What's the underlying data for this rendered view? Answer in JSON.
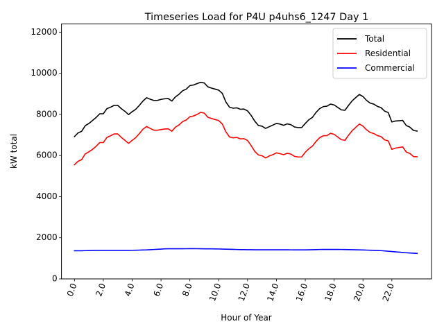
{
  "chart_data": {
    "type": "line",
    "title": "Timeseries Load for P4U p4uhs6_1247  Day 1",
    "xlabel": "Hour of Year",
    "ylabel": "kW total",
    "xlim": [
      -0.9,
      24.75
    ],
    "ylim": [
      0,
      12400
    ],
    "x_ticks": [
      0,
      2,
      4,
      6,
      8,
      10,
      12,
      14,
      16,
      18,
      20,
      22
    ],
    "x_tick_labels": [
      "0.0",
      "2.0",
      "4.0",
      "6.0",
      "8.0",
      "10.0",
      "12.0",
      "14.0",
      "16.0",
      "18.0",
      "20.0",
      "22.0"
    ],
    "y_ticks": [
      0,
      2000,
      4000,
      6000,
      8000,
      10000,
      12000
    ],
    "y_tick_labels": [
      "0",
      "2000",
      "4000",
      "6000",
      "8000",
      "10000",
      "12000"
    ],
    "grid": false,
    "legend_position": "top-right",
    "x": [
      0,
      0.25,
      0.5,
      0.75,
      1,
      1.25,
      1.5,
      1.75,
      2,
      2.25,
      2.5,
      2.75,
      3,
      3.25,
      3.5,
      3.75,
      4,
      4.25,
      4.5,
      4.75,
      5,
      5.25,
      5.5,
      5.75,
      6,
      6.25,
      6.5,
      6.75,
      7,
      7.25,
      7.5,
      7.75,
      8,
      8.25,
      8.5,
      8.75,
      9,
      9.25,
      9.5,
      9.75,
      10,
      10.25,
      10.5,
      10.75,
      11,
      11.25,
      11.5,
      11.75,
      12,
      12.25,
      12.5,
      12.75,
      13,
      13.25,
      13.5,
      13.75,
      14,
      14.25,
      14.5,
      14.75,
      15,
      15.25,
      15.5,
      15.75,
      16,
      16.25,
      16.5,
      16.75,
      17,
      17.25,
      17.5,
      17.75,
      18,
      18.25,
      18.5,
      18.75,
      19,
      19.25,
      19.5,
      19.75,
      20,
      20.25,
      20.5,
      20.75,
      21,
      21.25,
      21.5,
      21.75,
      22,
      22.25,
      22.5,
      22.75,
      23,
      23.25,
      23.5,
      23.75
    ],
    "series": [
      {
        "name": "Total",
        "color": "#000000",
        "values": [
          6920,
          7100,
          7180,
          7450,
          7560,
          7700,
          7850,
          8030,
          8030,
          8280,
          8350,
          8440,
          8440,
          8280,
          8150,
          7990,
          8130,
          8250,
          8440,
          8650,
          8810,
          8740,
          8680,
          8680,
          8730,
          8760,
          8770,
          8650,
          8850,
          8980,
          9150,
          9230,
          9400,
          9430,
          9500,
          9560,
          9530,
          9340,
          9280,
          9230,
          9180,
          9020,
          8600,
          8350,
          8300,
          8320,
          8250,
          8260,
          8170,
          7950,
          7670,
          7460,
          7430,
          7320,
          7400,
          7480,
          7560,
          7530,
          7470,
          7540,
          7500,
          7390,
          7360,
          7360,
          7560,
          7740,
          7860,
          8100,
          8280,
          8380,
          8400,
          8500,
          8460,
          8340,
          8220,
          8200,
          8440,
          8660,
          8820,
          8970,
          8870,
          8680,
          8550,
          8500,
          8390,
          8330,
          8160,
          8090,
          7630,
          7680,
          7690,
          7710,
          7460,
          7380,
          7220,
          7190
        ]
      },
      {
        "name": "Residential",
        "color": "#ff0000",
        "values": [
          5550,
          5720,
          5800,
          6080,
          6180,
          6300,
          6450,
          6630,
          6630,
          6880,
          6960,
          7050,
          7050,
          6880,
          6740,
          6590,
          6740,
          6870,
          7070,
          7280,
          7410,
          7320,
          7230,
          7230,
          7260,
          7290,
          7300,
          7180,
          7380,
          7490,
          7650,
          7730,
          7890,
          7920,
          8000,
          8100,
          8060,
          7860,
          7800,
          7750,
          7700,
          7530,
          7150,
          6900,
          6860,
          6880,
          6810,
          6820,
          6730,
          6480,
          6200,
          6030,
          5990,
          5880,
          5980,
          6040,
          6130,
          6090,
          6040,
          6110,
          6070,
          5960,
          5930,
          5930,
          6160,
          6330,
          6460,
          6690,
          6870,
          6960,
          6970,
          7080,
          7030,
          6900,
          6770,
          6740,
          6990,
          7210,
          7370,
          7530,
          7430,
          7250,
          7120,
          7070,
          6970,
          6920,
          6760,
          6710,
          6300,
          6360,
          6390,
          6420,
          6170,
          6100,
          5950,
          5940
        ]
      },
      {
        "name": "Commercial",
        "color": "#0000ff",
        "values": [
          1370,
          1370,
          1370,
          1375,
          1380,
          1385,
          1388,
          1390,
          1390,
          1390,
          1390,
          1390,
          1390,
          1390,
          1390,
          1390,
          1392,
          1395,
          1400,
          1405,
          1410,
          1420,
          1430,
          1440,
          1450,
          1460,
          1465,
          1465,
          1465,
          1465,
          1465,
          1468,
          1470,
          1470,
          1468,
          1466,
          1462,
          1460,
          1460,
          1458,
          1455,
          1450,
          1445,
          1440,
          1435,
          1430,
          1425,
          1422,
          1420,
          1418,
          1416,
          1415,
          1414,
          1414,
          1415,
          1415,
          1416,
          1416,
          1415,
          1414,
          1413,
          1412,
          1412,
          1412,
          1412,
          1414,
          1418,
          1425,
          1430,
          1432,
          1433,
          1433,
          1433,
          1432,
          1430,
          1427,
          1423,
          1420,
          1415,
          1410,
          1405,
          1400,
          1395,
          1390,
          1385,
          1375,
          1360,
          1345,
          1330,
          1315,
          1300,
          1285,
          1270,
          1260,
          1250,
          1240
        ]
      }
    ]
  }
}
